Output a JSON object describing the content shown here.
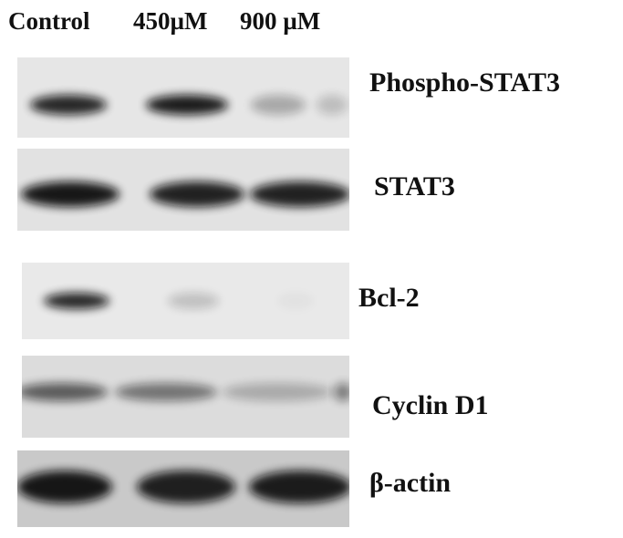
{
  "lanes": [
    "Control",
    "450µM",
    "900 µM"
  ],
  "blots": [
    {
      "id": "phospho-stat3",
      "label": "Phospho-STAT3",
      "background": "#e6e6e6",
      "bands": [
        0.88,
        0.93,
        0.28
      ],
      "extra_band": 0.18
    },
    {
      "id": "stat3",
      "label": "STAT3",
      "background": "#e2e2e2",
      "bands": [
        0.95,
        0.9,
        0.9
      ]
    },
    {
      "id": "bcl-2",
      "label": "Bcl-2",
      "background": "#e9e9e9",
      "bands": [
        0.88,
        0.18,
        0.03
      ]
    },
    {
      "id": "cyclin-d1",
      "label": "Cyclin D1",
      "background": "#dcdcdc",
      "bands": [
        0.62,
        0.5,
        0.24
      ]
    },
    {
      "id": "beta-actin",
      "label": "β-actin",
      "background": "#c9c9c9",
      "bands": [
        0.95,
        0.9,
        0.92
      ]
    }
  ]
}
